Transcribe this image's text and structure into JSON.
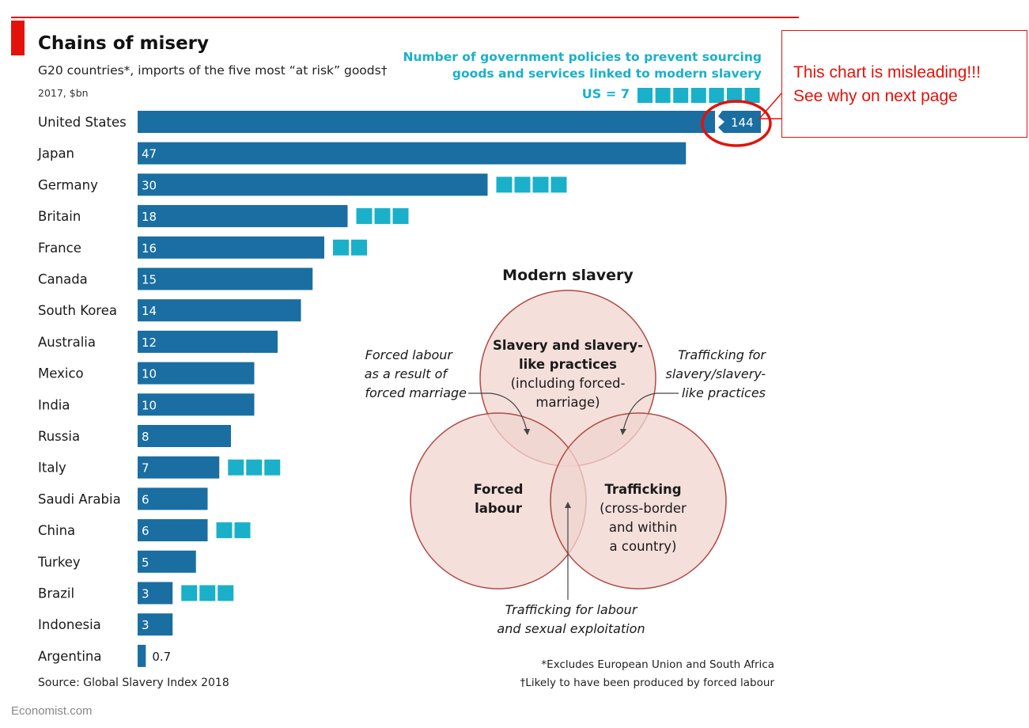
{
  "header": {
    "title": "Chains of misery",
    "subtitle": "G20 countries*, imports of the five most “at risk” goods†",
    "unit": "2017, $bn"
  },
  "policy_legend": {
    "heading_line1": "Number of government policies to prevent sourcing",
    "heading_line2": "goods and services linked to modern slavery",
    "us_label": "US = 7"
  },
  "callout": {
    "line1": "This chart is misleading!!!",
    "line2": "See why on next page"
  },
  "source": "Source: Global Slavery Index 2018",
  "footnotes": {
    "asterisk": "*Excludes European Union and South Africa",
    "dagger": "†Likely to have been produced by forced labour"
  },
  "brand": "Economist.com",
  "colors": {
    "bar": "#1a6ea1",
    "policy_square": "#1ab0c9",
    "accent_red": "#e3120b",
    "venn_fill": "#f0d4cf",
    "venn_stroke": "#b04a44"
  },
  "chart_data": {
    "type": "bar",
    "orientation": "horizontal",
    "title": "Chains of misery",
    "subtitle": "G20 countries*, imports of the five most “at risk” goods†",
    "unit": "2017, $bn",
    "axis_break": "United States bar is truncated (broken)",
    "categories": [
      "United States",
      "Japan",
      "Germany",
      "Britain",
      "France",
      "Canada",
      "South Korea",
      "Australia",
      "Mexico",
      "India",
      "Russia",
      "Italy",
      "Saudi Arabia",
      "China",
      "Turkey",
      "Brazil",
      "Indonesia",
      "Argentina"
    ],
    "values": [
      144,
      47,
      30,
      18,
      16,
      15,
      14,
      12,
      10,
      10,
      8,
      7,
      6,
      6,
      5,
      3,
      3,
      0.7
    ],
    "labels": [
      "144",
      "47",
      "30",
      "18",
      "16",
      "15",
      "14",
      "12",
      "10",
      "10",
      "8",
      "7",
      "6",
      "6",
      "5",
      "3",
      "3",
      "0.7"
    ],
    "series": [
      {
        "name": "Number of government policies to prevent sourcing goods and services linked to modern slavery",
        "values": [
          7,
          0,
          4,
          3,
          2,
          0,
          0,
          0,
          0,
          0,
          0,
          3,
          0,
          2,
          0,
          3,
          0,
          0
        ]
      }
    ]
  },
  "venn": {
    "title": "Modern slavery",
    "top": [
      "Slavery and slavery-",
      "like practices",
      "(including forced-",
      "marriage)"
    ],
    "left": [
      "Forced",
      "labour"
    ],
    "right": [
      "Trafficking",
      "(cross-border",
      "and within",
      "a country)"
    ],
    "ann_left": [
      "Forced labour",
      "as a result of",
      "forced marriage"
    ],
    "ann_right": [
      "Trafficking for",
      "slavery/slavery-",
      "like practices"
    ],
    "ann_bottom": [
      "Trafficking for labour",
      "and sexual exploitation"
    ]
  }
}
